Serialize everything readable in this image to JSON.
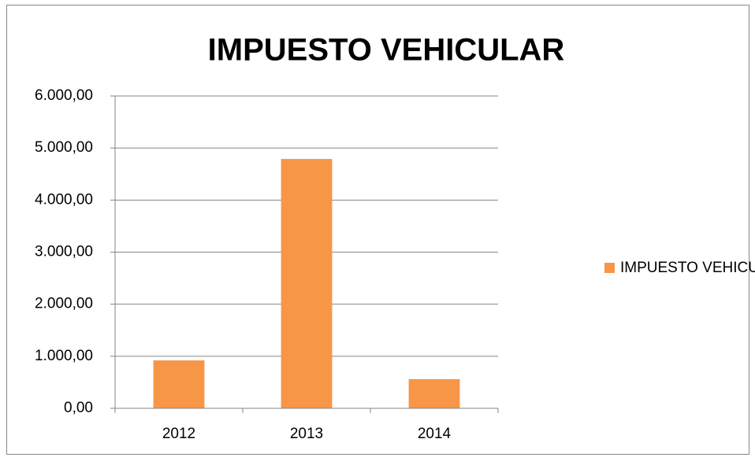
{
  "chart_data": {
    "type": "bar",
    "title": "IMPUESTO VEHICULAR",
    "categories": [
      "2012",
      "2013",
      "2014"
    ],
    "series": [
      {
        "name": "IMPUESTO VEHICULAR",
        "color": "#f79646",
        "values": [
          920,
          4790,
          560
        ]
      }
    ],
    "ylim": [
      0,
      6000
    ],
    "yticks": [
      {
        "value": 0,
        "label": "0,00"
      },
      {
        "value": 1000,
        "label": "1.000,00"
      },
      {
        "value": 2000,
        "label": "2.000,00"
      },
      {
        "value": 3000,
        "label": "3.000,00"
      },
      {
        "value": 4000,
        "label": "4.000,00"
      },
      {
        "value": 5000,
        "label": "5.000,00"
      },
      {
        "value": 6000,
        "label": "6.000,00"
      }
    ],
    "grid": true,
    "legend": "right"
  }
}
